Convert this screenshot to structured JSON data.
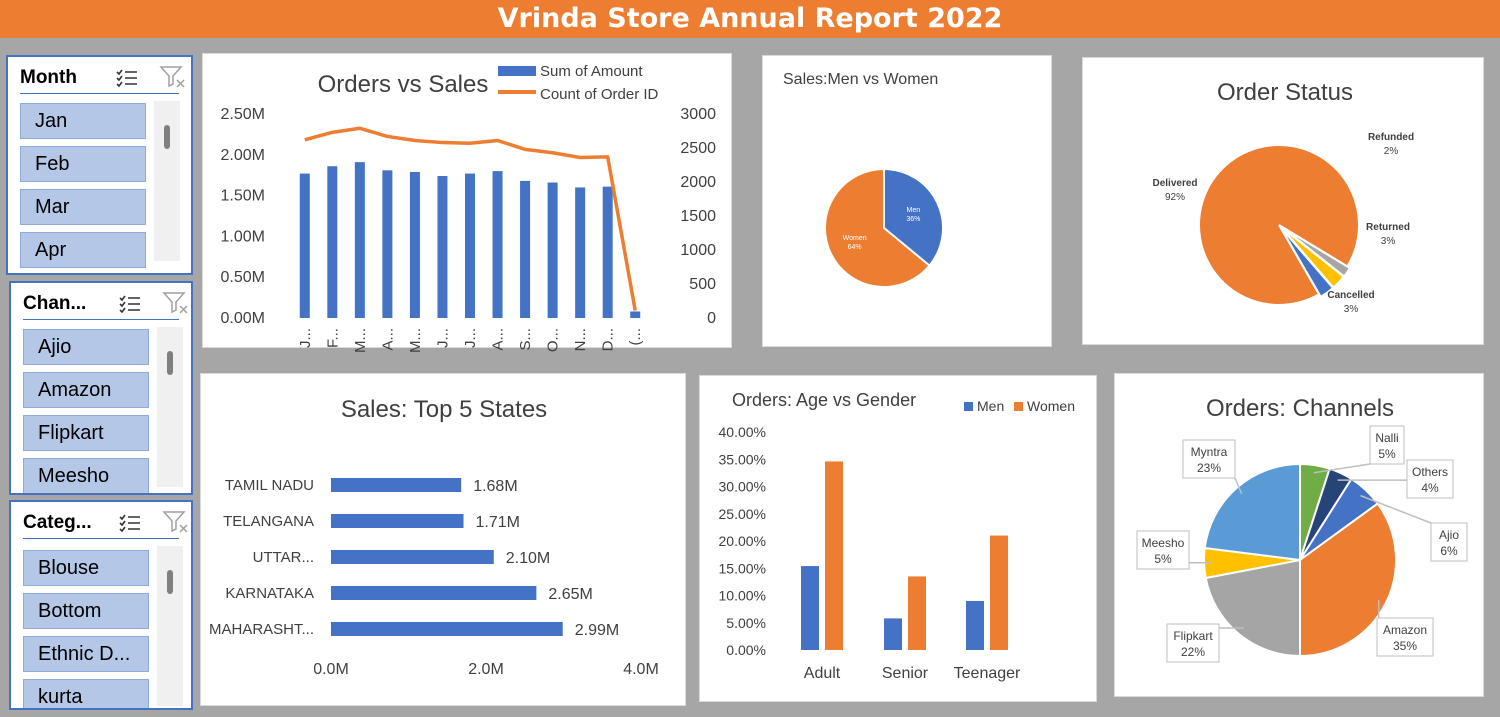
{
  "banner": {
    "title": "Vrinda Store Annual Report 2022"
  },
  "colors": {
    "orange": "#ed7d31",
    "blue": "#4472c4",
    "slicer_item": "#b4c7e7",
    "background": "#a6a6a6"
  },
  "slicers": {
    "month": {
      "title": "Month",
      "items": [
        "Jan",
        "Feb",
        "Mar",
        "Apr"
      ]
    },
    "channel": {
      "title": "Chan...",
      "items": [
        "Ajio",
        "Amazon",
        "Flipkart",
        "Meesho"
      ]
    },
    "category": {
      "title": "Categ...",
      "items": [
        "Blouse",
        "Bottom",
        "Ethnic D...",
        "kurta"
      ]
    },
    "icons": [
      "multi-select-icon",
      "clear-filter-icon"
    ]
  },
  "chart_data": [
    {
      "id": "orders_vs_sales",
      "type": "combo-bar-line",
      "title": "Orders vs Sales",
      "categories": [
        "J...",
        "F...",
        "M...",
        "A...",
        "M...",
        "J...",
        "J...",
        "A...",
        "S...",
        "O...",
        "N...",
        "D...",
        "(..."
      ],
      "series": [
        {
          "name": "Sum of Amount",
          "type": "bar",
          "axis": "left",
          "values": [
            1.77,
            1.86,
            1.91,
            1.81,
            1.79,
            1.74,
            1.77,
            1.8,
            1.68,
            1.66,
            1.6,
            1.61,
            0.08
          ]
        },
        {
          "name": "Count of Order ID",
          "type": "line",
          "axis": "right",
          "values": [
            2620,
            2730,
            2790,
            2670,
            2610,
            2580,
            2570,
            2610,
            2480,
            2430,
            2360,
            2370,
            110
          ]
        }
      ],
      "left_ticks": [
        "0.00M",
        "0.50M",
        "1.00M",
        "1.50M",
        "2.00M",
        "2.50M"
      ],
      "left_range": [
        0,
        2.5
      ],
      "right_ticks": [
        "0",
        "500",
        "1000",
        "1500",
        "2000",
        "2500",
        "3000"
      ],
      "right_range": [
        0,
        3000
      ],
      "legend_position": "top-right"
    },
    {
      "id": "men_vs_women",
      "type": "pie",
      "title": "Sales:Men vs Women",
      "slices": [
        {
          "label": "Men",
          "value": 36,
          "text": "36%",
          "color": "#4472c4"
        },
        {
          "label": "Women",
          "value": 64,
          "text": "64%",
          "color": "#ed7d31"
        }
      ]
    },
    {
      "id": "order_status",
      "type": "pie",
      "title": "Order Status",
      "slices": [
        {
          "label": "Delivered",
          "value": 92,
          "text": "92%",
          "color": "#ed7d31"
        },
        {
          "label": "Refunded",
          "value": 2,
          "text": "2%",
          "color": "#a5a5a5"
        },
        {
          "label": "Returned",
          "value": 3,
          "text": "3%",
          "color": "#ffc000"
        },
        {
          "label": "Cancelled",
          "value": 3,
          "text": "3%",
          "color": "#4472c4"
        }
      ]
    },
    {
      "id": "top5_states",
      "type": "bar",
      "orientation": "horizontal",
      "title": "Sales: Top 5 States",
      "categories": [
        "TAMIL NADU",
        "TELANGANA",
        "UTTAR...",
        "KARNATAKA",
        "MAHARASHT..."
      ],
      "values": [
        1.68,
        1.71,
        2.1,
        2.65,
        2.99
      ],
      "value_labels": [
        "1.68M",
        "1.71M",
        "2.10M",
        "2.65M",
        "2.99M"
      ],
      "x_ticks": [
        "0.0M",
        "2.0M",
        "4.0M"
      ],
      "xlim": [
        0,
        4
      ]
    },
    {
      "id": "age_vs_gender",
      "type": "bar",
      "title": "Orders: Age vs Gender",
      "categories": [
        "Adult",
        "Senior",
        "Teenager"
      ],
      "series": [
        {
          "name": "Men",
          "values": [
            15.4,
            5.8,
            9.0
          ],
          "color": "#4472c4"
        },
        {
          "name": "Women",
          "values": [
            34.6,
            13.5,
            21.0
          ],
          "color": "#ed7d31"
        }
      ],
      "y_ticks": [
        "0.00%",
        "5.00%",
        "10.00%",
        "15.00%",
        "20.00%",
        "25.00%",
        "30.00%",
        "35.00%",
        "40.00%"
      ],
      "ylim": [
        0,
        40
      ],
      "legend_position": "top-right"
    },
    {
      "id": "channels",
      "type": "pie",
      "title": "Orders: Channels",
      "slices": [
        {
          "label": "Nalli",
          "value": 5,
          "text": "5%",
          "color": "#70ad47"
        },
        {
          "label": "Others",
          "value": 4,
          "text": "4%",
          "color": "#264478"
        },
        {
          "label": "Ajio",
          "value": 6,
          "text": "6%",
          "color": "#4472c4"
        },
        {
          "label": "Amazon",
          "value": 35,
          "text": "35%",
          "color": "#ed7d31"
        },
        {
          "label": "Flipkart",
          "value": 22,
          "text": "22%",
          "color": "#a5a5a5"
        },
        {
          "label": "Meesho",
          "value": 5,
          "text": "5%",
          "color": "#ffc000"
        },
        {
          "label": "Myntra",
          "value": 23,
          "text": "23%",
          "color": "#5b9bd5"
        }
      ]
    }
  ]
}
